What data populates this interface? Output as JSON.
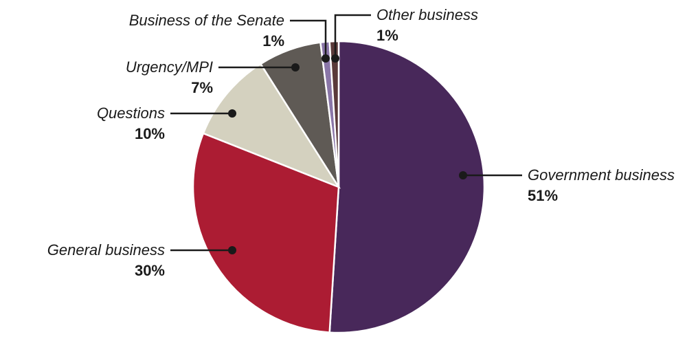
{
  "chart_data": {
    "type": "pie",
    "categories": [
      "Government business",
      "General business",
      "Questions",
      "Urgency/MPI",
      "Business of the Senate",
      "Other business"
    ],
    "values": [
      51,
      30,
      10,
      7,
      1,
      1
    ],
    "value_labels": [
      "51%",
      "30%",
      "10%",
      "7%",
      "1%",
      "1%"
    ],
    "colors": [
      "#48285a",
      "#ac1c33",
      "#d4d1bf",
      "#5f5a55",
      "#8a76a8",
      "#5a3a3a"
    ],
    "legend": "none (labels placed beside slices with leader lines)"
  }
}
